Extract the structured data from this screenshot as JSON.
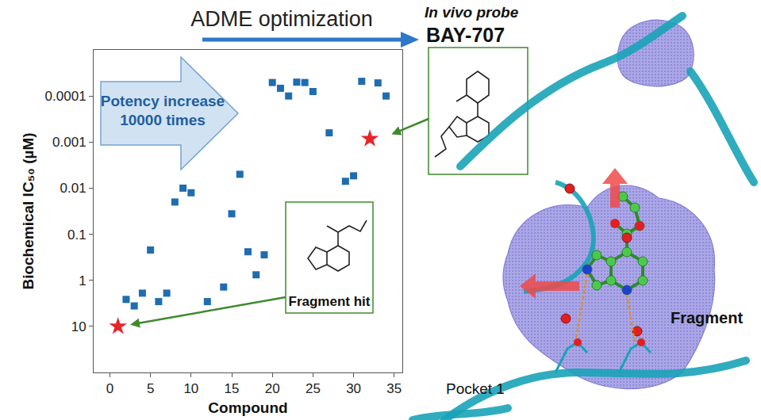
{
  "chart_data": {
    "type": "scatter",
    "xlabel": "Compound",
    "ylabel": "Biochemical IC₅₀ (µM)",
    "log": "y",
    "grid": false,
    "xlim": [
      -2,
      36
    ],
    "xticks": [
      0,
      5,
      10,
      15,
      20,
      25,
      30,
      35
    ],
    "ylim": [
      100,
      1e-05
    ],
    "yticks": [
      0.0001,
      0.001,
      0.01,
      0.1,
      1,
      10
    ],
    "series": [
      {
        "color": "#1f6db0",
        "marker": "square",
        "x": [
          2,
          3,
          4,
          5,
          6,
          7,
          8,
          9,
          10,
          12,
          14,
          15,
          16,
          17,
          18,
          19,
          20,
          21,
          22,
          23,
          24,
          25,
          27,
          29,
          30,
          31,
          33,
          34
        ],
        "values": [
          2.6,
          3.6,
          1.9,
          0.22,
          2.9,
          1.9,
          0.02,
          0.01,
          0.0126,
          2.9,
          1.4,
          0.036,
          0.005,
          0.24,
          0.76,
          0.28,
          5.1e-05,
          6.8e-05,
          0.0001,
          5e-05,
          5.1e-05,
          8e-05,
          0.00063,
          0.0071,
          0.0054,
          4.8e-05,
          5.2e-05,
          0.0001
        ]
      },
      {
        "color": "#e8242a",
        "marker": "star",
        "x": [
          1,
          32
        ],
        "values": [
          10,
          0.00085
        ]
      }
    ],
    "annotations": [
      {
        "text": "ADME optimization"
      },
      {
        "text": "In vivo probe"
      },
      {
        "text": "BAY-707"
      },
      {
        "text": [
          "Potency increase",
          "10000 times"
        ]
      },
      {
        "text": "Fragment hit"
      },
      {
        "text": "Pocket 1"
      },
      {
        "text": "Fragment"
      }
    ]
  }
}
